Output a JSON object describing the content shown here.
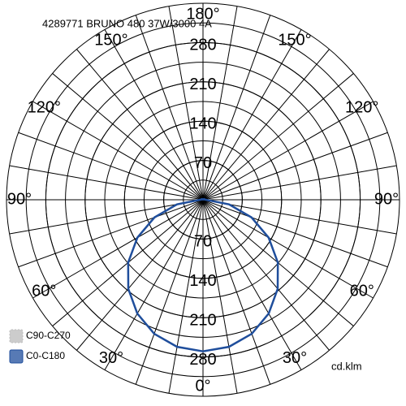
{
  "chart_data": {
    "type": "polar",
    "title": "4289771 BRUNO 480 37W/3000 4A",
    "unit_label": "cd.klm",
    "angles": [
      0,
      10,
      20,
      30,
      40,
      50,
      60,
      70,
      80,
      90,
      100,
      110,
      120,
      130,
      140,
      150,
      160,
      170,
      180
    ],
    "series": [
      {
        "name": "C90-C270",
        "color": "#bbbbbb",
        "values": [
          270,
          266,
          254,
          234,
          207,
          174,
          135,
          92,
          47,
          5,
          3,
          2,
          2,
          1,
          1,
          1,
          1,
          1,
          1
        ]
      },
      {
        "name": "C0-C180",
        "color": "#1f4e9c",
        "values": [
          270,
          266,
          254,
          234,
          207,
          174,
          135,
          92,
          47,
          5,
          3,
          2,
          2,
          1,
          1,
          1,
          1,
          1,
          1
        ]
      }
    ],
    "rlim": [
      0,
      350
    ],
    "rticks": [
      70,
      140,
      210,
      280
    ],
    "rgrid_step": 35,
    "angle_grid_step": 10,
    "angle_ticks": [
      {
        "value": 0,
        "label": "0°"
      },
      {
        "value": 30,
        "label": "30°"
      },
      {
        "value": 60,
        "label": "60°"
      },
      {
        "value": 90,
        "label": "90°"
      },
      {
        "value": 120,
        "label": "120°"
      },
      {
        "value": 150,
        "label": "150°"
      },
      {
        "value": 180,
        "label": "180°"
      }
    ]
  }
}
